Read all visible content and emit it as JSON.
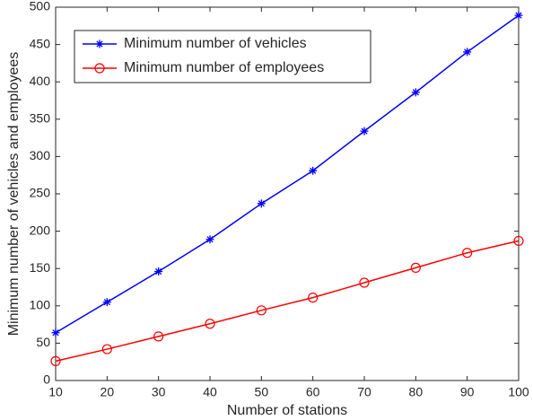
{
  "chart_data": {
    "type": "line",
    "x_label": "Number of stations",
    "y_label": "Minimum number of vehicles and employees",
    "x": [
      10,
      20,
      30,
      40,
      50,
      60,
      70,
      80,
      90,
      100
    ],
    "series": [
      {
        "name": "Minimum number of vehicles",
        "color": "#0000ff",
        "marker": "star",
        "values": [
          64,
          105,
          146,
          189,
          237,
          281,
          334,
          386,
          440,
          489
        ]
      },
      {
        "name": "Minimum number of employees",
        "color": "#ff0000",
        "marker": "circle",
        "values": [
          26,
          42,
          59,
          76,
          94,
          111,
          131,
          151,
          171,
          187
        ]
      }
    ],
    "xlim": [
      10,
      100
    ],
    "xticks": [
      10,
      20,
      30,
      40,
      50,
      60,
      70,
      80,
      90,
      100
    ],
    "ylim": [
      0,
      500
    ],
    "yticks": [
      0,
      50,
      100,
      150,
      200,
      250,
      300,
      350,
      400,
      450,
      500
    ],
    "grid": false,
    "legend_position": "upper-left"
  }
}
